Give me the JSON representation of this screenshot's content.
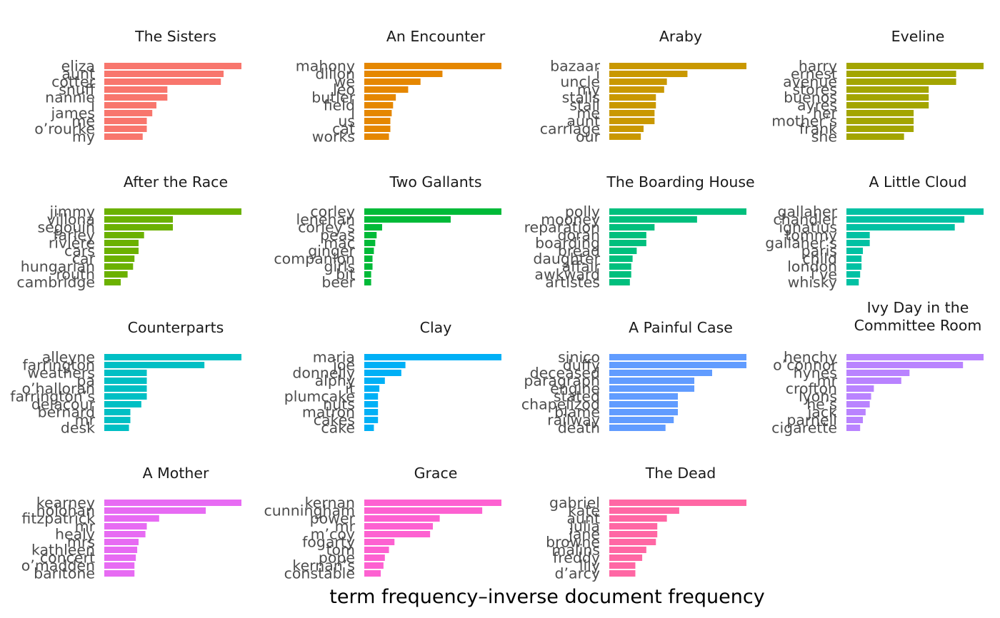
{
  "chart_data": {
    "type": "bar",
    "orientation": "horizontal",
    "xlabel": "term frequency–inverse document frequency",
    "ylabel": "",
    "grid": false,
    "legend": "none",
    "facets": [
      {
        "title": "The Sisters",
        "color": "#F8766D",
        "terms": [
          "eliza",
          "aunt",
          "cotter",
          "snuff",
          "nannie",
          "i",
          "james",
          "me",
          "o’rourke",
          "my"
        ],
        "values": [
          1.0,
          0.87,
          0.85,
          0.46,
          0.46,
          0.38,
          0.35,
          0.31,
          0.31,
          0.28
        ]
      },
      {
        "title": "An Encounter",
        "color": "#E58700",
        "terms": [
          "mahony",
          "dillon",
          "we",
          "leo",
          "butler",
          "field",
          "i",
          "us",
          "cat",
          "works"
        ],
        "values": [
          1.0,
          0.57,
          0.41,
          0.32,
          0.23,
          0.21,
          0.2,
          0.19,
          0.19,
          0.18
        ]
      },
      {
        "title": "Araby",
        "color": "#C99800",
        "terms": [
          "bazaar",
          "i",
          "uncle",
          "my",
          "stalls",
          "stall",
          "me",
          "aunt",
          "carriage",
          "our"
        ],
        "values": [
          1.0,
          0.57,
          0.42,
          0.4,
          0.34,
          0.34,
          0.33,
          0.33,
          0.25,
          0.23
        ]
      },
      {
        "title": "Eveline",
        "color": "#A3A500",
        "terms": [
          "harry",
          "ernest",
          "avenue",
          "stores",
          "buenos",
          "ayres",
          "her",
          "mother’s",
          "frank",
          "she"
        ],
        "values": [
          1.0,
          0.8,
          0.8,
          0.6,
          0.6,
          0.6,
          0.49,
          0.49,
          0.49,
          0.42
        ]
      },
      {
        "title": "After the Race",
        "color": "#6BB100",
        "terms": [
          "jimmy",
          "villona",
          "segouin",
          "farley",
          "rivière",
          "cars",
          "car",
          "hungarian",
          "routh",
          "cambridge"
        ],
        "values": [
          1.0,
          0.5,
          0.5,
          0.29,
          0.25,
          0.25,
          0.22,
          0.21,
          0.17,
          0.12
        ]
      },
      {
        "title": "Two Gallants",
        "color": "#00BA38",
        "terms": [
          "corley",
          "lenehan",
          "corley’s",
          "peas",
          "mac",
          "ginger",
          "companion",
          "girls",
          "bit",
          "beer"
        ],
        "values": [
          1.0,
          0.63,
          0.13,
          0.09,
          0.08,
          0.07,
          0.06,
          0.06,
          0.05,
          0.05
        ]
      },
      {
        "title": "The Boarding House",
        "color": "#00BF7D",
        "terms": [
          "polly",
          "mooney",
          "reparation",
          "doran",
          "boarding",
          "bread",
          "daughter",
          "affair",
          "awkward",
          "artistes"
        ],
        "values": [
          1.0,
          0.64,
          0.33,
          0.27,
          0.27,
          0.2,
          0.17,
          0.16,
          0.16,
          0.15
        ]
      },
      {
        "title": "A Little Cloud",
        "color": "#00C1A3",
        "terms": [
          "gallaher",
          "chandler",
          "ignatius",
          "tommy",
          "gallaher’s",
          "paris",
          "child",
          "london",
          "i’ve",
          "whisky"
        ],
        "values": [
          1.0,
          0.86,
          0.79,
          0.17,
          0.17,
          0.12,
          0.11,
          0.11,
          0.1,
          0.09
        ]
      },
      {
        "title": "Counterparts",
        "color": "#00BFC4",
        "terms": [
          "alleyne",
          "farrington",
          "weathers",
          "pa",
          "o’halloran",
          "farrington’s",
          "delacour",
          "bernard",
          "mr",
          "desk"
        ],
        "values": [
          1.0,
          0.73,
          0.31,
          0.31,
          0.31,
          0.31,
          0.27,
          0.19,
          0.19,
          0.18
        ]
      },
      {
        "title": "Clay",
        "color": "#00B0F6",
        "terms": [
          "maria",
          "joe",
          "donnelly",
          "alphy",
          "it",
          "plumcake",
          "nuts",
          "matron",
          "cakes",
          "cake"
        ],
        "values": [
          1.0,
          0.3,
          0.27,
          0.15,
          0.11,
          0.1,
          0.1,
          0.1,
          0.1,
          0.07
        ]
      },
      {
        "title": "A Painful Case",
        "color": "#619CFF",
        "terms": [
          "sinico",
          "duffy",
          "deceased",
          "paragraph",
          "engine",
          "stated",
          "chapelizod",
          "blame",
          "railway",
          "death"
        ],
        "values": [
          1.0,
          1.0,
          0.75,
          0.62,
          0.62,
          0.5,
          0.5,
          0.5,
          0.47,
          0.41
        ]
      },
      {
        "title": "Ivy Day in the Committee Room",
        "title_lines": [
          "Ivy Day in the",
          "Committee Room"
        ],
        "color": "#B983FF",
        "terms": [
          "henchy",
          "o’connor",
          "hynes",
          "mr",
          "crofton",
          "lyons",
          "he’s",
          "jack",
          "parnell",
          "cigarette"
        ],
        "values": [
          1.0,
          0.85,
          0.46,
          0.4,
          0.2,
          0.18,
          0.17,
          0.14,
          0.12,
          0.1
        ]
      },
      {
        "title": "A Mother",
        "color": "#E76BF3",
        "terms": [
          "kearney",
          "holohan",
          "fitzpatrick",
          "mr",
          "healy",
          "mrs",
          "kathleen",
          "concert",
          "o’madden",
          "baritone"
        ],
        "values": [
          1.0,
          0.74,
          0.4,
          0.31,
          0.3,
          0.25,
          0.24,
          0.23,
          0.22,
          0.22
        ]
      },
      {
        "title": "Grace",
        "color": "#FD61D1",
        "terms": [
          "kernan",
          "cunningham",
          "power",
          "mr",
          "m’coy",
          "fogarty",
          "tom",
          "pope",
          "kernan’s",
          "constable"
        ],
        "values": [
          1.0,
          0.86,
          0.55,
          0.5,
          0.48,
          0.22,
          0.18,
          0.15,
          0.14,
          0.12
        ]
      },
      {
        "title": "The Dead",
        "color": "#FF67A4",
        "terms": [
          "gabriel",
          "kate",
          "aunt",
          "julia",
          "jane",
          "browne",
          "malins",
          "freddy",
          "lily",
          "d’arcy"
        ],
        "values": [
          1.0,
          0.51,
          0.42,
          0.35,
          0.35,
          0.34,
          0.27,
          0.24,
          0.19,
          0.19
        ]
      }
    ]
  }
}
